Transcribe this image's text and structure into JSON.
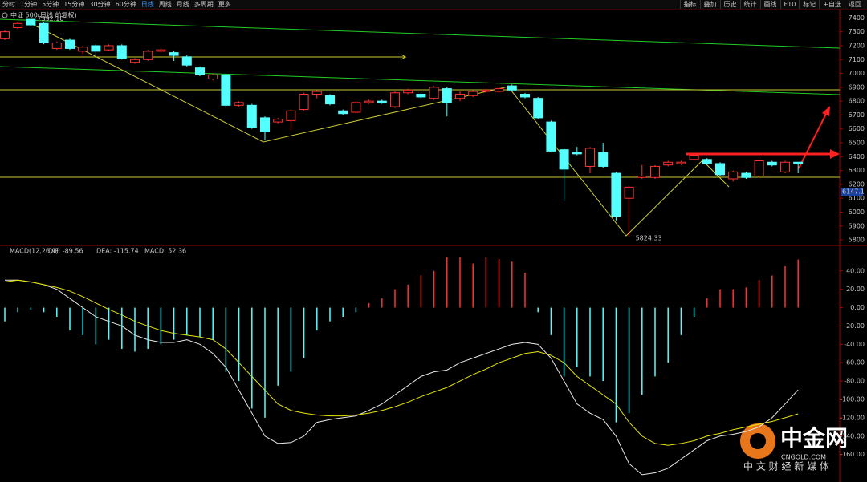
{
  "toolbar": {
    "periods": [
      "分时",
      "1分钟",
      "5分钟",
      "15分钟",
      "30分钟",
      "60分钟",
      "日线",
      "周线",
      "月线",
      "多周期",
      "更多"
    ],
    "selected_index": 6,
    "tools": [
      "指标",
      "叠加",
      "历史",
      "统计",
      "画线",
      "F10",
      "标记",
      "+自选",
      "返回"
    ]
  },
  "chart_data": [
    {
      "type": "candlestick",
      "title": "中证 500(日线 前复权)",
      "up_color": "#ff3232",
      "down_color": "#54ffff",
      "open": [
        7250,
        7330,
        7390,
        7360,
        7180,
        7240,
        7160,
        7200,
        7170,
        7200,
        7080,
        7100,
        7160,
        7150,
        7120,
        7040,
        6960,
        6990,
        6770,
        6770,
        6680,
        6650,
        6660,
        6740,
        6850,
        6840,
        6730,
        6720,
        6790,
        6800,
        6760,
        6860,
        6850,
        6820,
        6890,
        6820,
        6840,
        6870,
        6870,
        6910,
        6850,
        6820,
        6650,
        6450,
        6430,
        6330,
        6430,
        6280,
        6100,
        6250,
        6250,
        6340,
        6350,
        6380,
        6380,
        6350,
        6240,
        6280,
        6260,
        6360,
        6290,
        6360
      ],
      "high": [
        7310,
        7370,
        7392.1,
        7370,
        7230,
        7250,
        7200,
        7210,
        7210,
        7210,
        7110,
        7170,
        7180,
        7160,
        7130,
        7050,
        7000,
        7000,
        6800,
        6780,
        6690,
        6680,
        6740,
        6860,
        6880,
        6850,
        6740,
        6800,
        6810,
        6810,
        6870,
        6890,
        6860,
        6910,
        6900,
        6870,
        6880,
        6890,
        6900,
        6920,
        6860,
        6830,
        6660,
        6460,
        6470,
        6470,
        6500,
        6290,
        6190,
        6340,
        6340,
        6370,
        6370,
        6420,
        6390,
        6360,
        6300,
        6290,
        6380,
        6370,
        6370,
        6360
      ],
      "low": [
        7240,
        7320,
        7340,
        7210,
        7170,
        7170,
        7140,
        7130,
        7160,
        7100,
        7070,
        7090,
        7150,
        7090,
        7050,
        6980,
        6950,
        6760,
        6760,
        6600,
        6520,
        6640,
        6590,
        6730,
        6820,
        6770,
        6700,
        6710,
        6780,
        6780,
        6750,
        6850,
        6820,
        6810,
        6690,
        6800,
        6830,
        6860,
        6860,
        6870,
        6820,
        6670,
        6430,
        6080,
        6410,
        6280,
        6320,
        5940,
        5824.33,
        6240,
        6240,
        6330,
        6340,
        6370,
        6340,
        6260,
        6220,
        6240,
        6250,
        6330,
        6280,
        6280
      ],
      "close": [
        7300,
        7360,
        7350,
        7220,
        7220,
        7180,
        7190,
        7160,
        7200,
        7110,
        7100,
        7160,
        7170,
        7130,
        7060,
        6990,
        6990,
        6770,
        6790,
        6610,
        6580,
        6670,
        6730,
        6850,
        6870,
        6780,
        6710,
        6790,
        6800,
        6790,
        6860,
        6880,
        6830,
        6900,
        6790,
        6850,
        6870,
        6880,
        6890,
        6880,
        6830,
        6680,
        6440,
        6310,
        6420,
        6460,
        6330,
        5970,
        6180,
        6260,
        6330,
        6360,
        6360,
        6410,
        6350,
        6270,
        6290,
        6250,
        6370,
        6340,
        6360,
        6350
      ],
      "ylim": [
        5760,
        7460
      ],
      "yticks": [
        5800,
        5900,
        6000,
        6100,
        6200,
        6300,
        6400,
        6500,
        6600,
        6700,
        6800,
        6900,
        7000,
        7100,
        7200,
        7300,
        7400
      ],
      "annotations": [
        {
          "value": 7392.1,
          "label": "7392.10"
        },
        {
          "value": 5824.33,
          "label": "5824.33"
        }
      ],
      "price_tag": 6147.1
    },
    {
      "type": "macd",
      "title": "MACD(12,26,9)",
      "series": [
        {
          "name": "DIF: -89.56",
          "color": "#e8e8e8",
          "values": [
            30,
            30,
            28,
            25,
            20,
            10,
            0,
            -10,
            -15,
            -20,
            -30,
            -35,
            -38,
            -38,
            -35,
            -40,
            -50,
            -65,
            -90,
            -115,
            -140,
            -148,
            -147,
            -140,
            -125,
            -122,
            -120,
            -118,
            -112,
            -105,
            -95,
            -85,
            -75,
            -70,
            -68,
            -60,
            -55,
            -50,
            -45,
            -40,
            -38,
            -40,
            -55,
            -80,
            -105,
            -115,
            -122,
            -140,
            -170,
            -182,
            -180,
            -175,
            -165,
            -155,
            -145,
            -140,
            -138,
            -135,
            -130,
            -120,
            -105,
            -89.56
          ]
        },
        {
          "name": "DEA: -115.74",
          "color": "#e6e600",
          "values": [
            28,
            30,
            28,
            25,
            22,
            18,
            12,
            5,
            -2,
            -8,
            -15,
            -20,
            -25,
            -28,
            -30,
            -32,
            -35,
            -45,
            -60,
            -75,
            -90,
            -105,
            -112,
            -115,
            -117,
            -118,
            -118,
            -117,
            -115,
            -112,
            -108,
            -103,
            -97,
            -92,
            -87,
            -80,
            -73,
            -67,
            -60,
            -55,
            -50,
            -48,
            -52,
            -60,
            -75,
            -85,
            -95,
            -105,
            -125,
            -140,
            -148,
            -150,
            -148,
            -145,
            -140,
            -137,
            -133,
            -130,
            -127,
            -124,
            -120,
            -115.74
          ]
        },
        {
          "name": "MACD: 52.36",
          "color": "#ff40ff",
          "up_color": "#ff3232",
          "down_color": "#54ffff",
          "values": [
            -15,
            -5,
            -2,
            -5,
            -10,
            -25,
            -30,
            -40,
            -35,
            -45,
            -48,
            -45,
            -40,
            -35,
            -30,
            -32,
            -35,
            -70,
            -80,
            -110,
            -120,
            -85,
            -70,
            -55,
            -25,
            -15,
            -10,
            -5,
            5,
            10,
            20,
            25,
            35,
            40,
            55,
            55,
            48,
            55,
            53,
            50,
            38,
            -5,
            -30,
            -75,
            -65,
            -75,
            -80,
            -125,
            -115,
            -95,
            -75,
            -60,
            -30,
            -10,
            10,
            20,
            20,
            22,
            30,
            35,
            45,
            52.36
          ]
        }
      ],
      "ylim": [
        -190,
        66
      ],
      "yticks": [
        {
          "value": 40,
          "label": "40.00"
        },
        {
          "value": 20,
          "label": "20.00"
        },
        {
          "value": 0,
          "label": "0.00"
        },
        {
          "value": -20,
          "label": "-20.00"
        },
        {
          "value": -40,
          "label": "-40.00"
        },
        {
          "value": -60,
          "label": "-60.00"
        },
        {
          "value": -80,
          "label": "-80.00"
        },
        {
          "value": -100,
          "label": "-100.00"
        },
        {
          "value": -120,
          "label": "-120.00"
        },
        {
          "value": -140,
          "label": "-140.00"
        },
        {
          "value": -160,
          "label": "-160.00"
        }
      ]
    }
  ],
  "watermark": {
    "brand": "中金网",
    "site": "CNGOLD.COM",
    "slogan": "中 文 财 经 新 媒 体"
  }
}
